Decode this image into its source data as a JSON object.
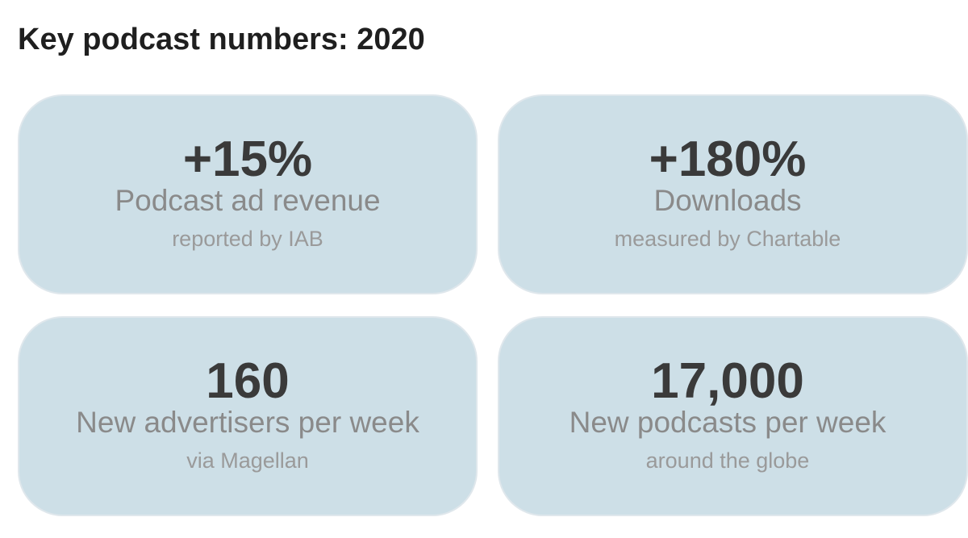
{
  "header": {
    "title": "Key podcast numbers: 2020"
  },
  "cards": [
    {
      "value": "+15%",
      "label": "Podcast ad revenue",
      "source": "reported by IAB"
    },
    {
      "value": "+180%",
      "label": "Downloads",
      "source": "measured by Chartable"
    },
    {
      "value": "160",
      "label": "New advertisers per week",
      "source": "via Magellan"
    },
    {
      "value": "17,000",
      "label": "New podcasts per week",
      "source": "around the globe"
    }
  ],
  "colors": {
    "card_background": "#cddfe7",
    "value_text": "#3a3a3a",
    "label_text": "#8a8a8a",
    "source_text": "#9a9a9a",
    "title_text": "#1f1f1f"
  }
}
